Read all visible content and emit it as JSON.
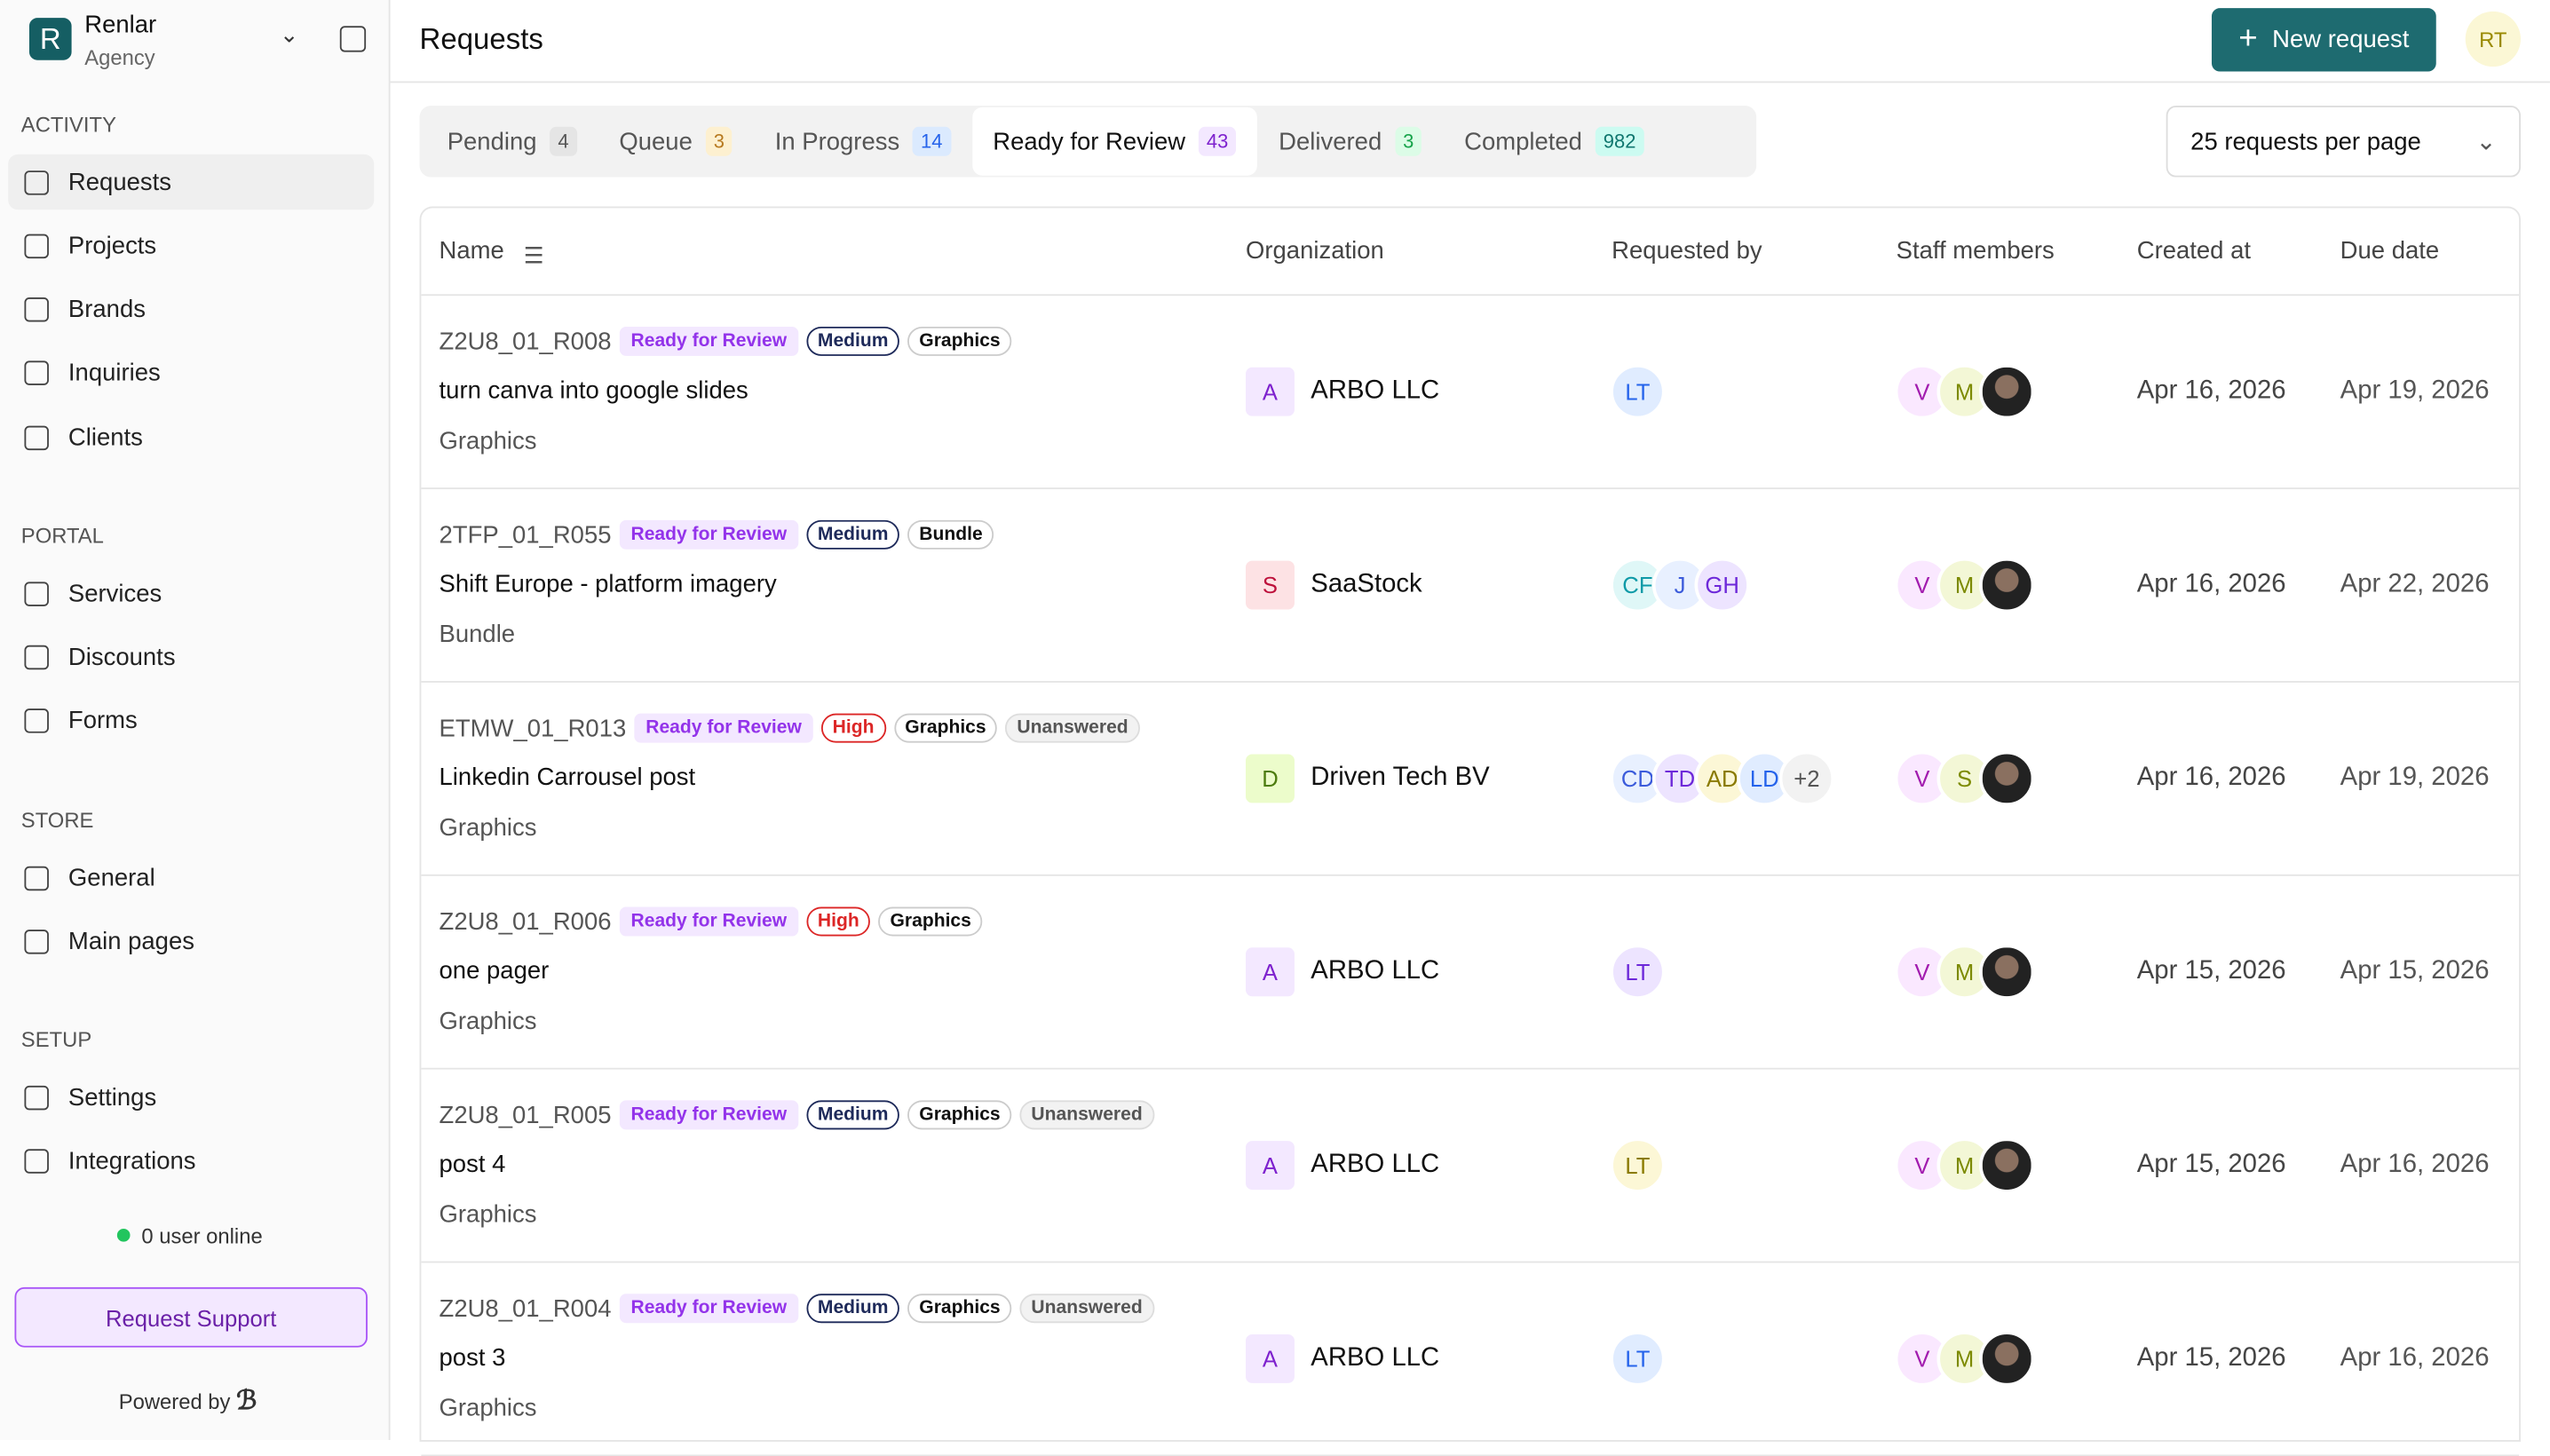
{
  "sidebar": {
    "brand": {
      "initial": "R",
      "name": "Renlar",
      "subtitle": "Agency"
    },
    "sections": [
      {
        "title": "ACTIVITY",
        "items": [
          "Requests",
          "Projects",
          "Brands",
          "Inquiries",
          "Clients"
        ]
      },
      {
        "title": "PORTAL",
        "items": [
          "Services",
          "Discounts",
          "Forms"
        ]
      },
      {
        "title": "STORE",
        "items": [
          "General",
          "Main pages"
        ]
      },
      {
        "title": "SETUP",
        "items": [
          "Settings",
          "Integrations"
        ]
      }
    ],
    "online": "0 user online",
    "support": "Request Support",
    "powered": "Powered by"
  },
  "header": {
    "title": "Requests",
    "button": "New request",
    "avatar": "RT"
  },
  "tabs": [
    {
      "label": "Pending",
      "count": "4"
    },
    {
      "label": "Queue",
      "count": "3"
    },
    {
      "label": "In Progress",
      "count": "14"
    },
    {
      "label": "Ready for Review",
      "count": "43"
    },
    {
      "label": "Delivered",
      "count": "3"
    },
    {
      "label": "Completed",
      "count": "982"
    }
  ],
  "per_page": "25 requests per page",
  "table": {
    "columns": [
      "Name",
      "Organization",
      "Requested by",
      "Staff members",
      "Created at",
      "Due date"
    ],
    "rows": [
      {
        "id": "Z2U8_01_R008",
        "status": "Ready for Review",
        "priority": {
          "text": "Medium",
          "color": "#1e2a5a"
        },
        "type": "Graphics",
        "title": "turn canva into google slides",
        "category": "Graphics",
        "org_initial": "A",
        "org": "ARBO LLC",
        "requested_by": [
          "LT"
        ],
        "staff": [
          "V",
          "M"
        ],
        "created": "Apr 16, 2026",
        "due": "Apr 19, 2026"
      },
      {
        "id": "2TFP_01_R055",
        "status": "Ready for Review",
        "priority": {
          "text": "Medium",
          "color": "#1e2a5a"
        },
        "type": "Bundle",
        "title": "Shift Europe - platform imagery",
        "category": "Bundle",
        "org_initial": "S",
        "org": "SaaStock",
        "requested_by": [
          "CF",
          "J",
          "GH"
        ],
        "staff": [
          "V",
          "M"
        ],
        "created": "Apr 16, 2026",
        "due": "Apr 22, 2026"
      },
      {
        "id": "ETMW_01_R013",
        "status": "Ready for Review",
        "priority": {
          "text": "High",
          "color": "#dc2626"
        },
        "type": "Graphics",
        "flag": "Unanswered",
        "title": "Linkedin Carrousel post",
        "category": "Graphics",
        "org_initial": "D",
        "org": "Driven Tech BV",
        "requested_by": [
          "CD",
          "TD",
          "AD",
          "LD"
        ],
        "requested_more": "+2",
        "staff": [
          "V",
          "S"
        ],
        "created": "Apr 16, 2026",
        "due": "Apr 19, 2026"
      },
      {
        "id": "Z2U8_01_R006",
        "status": "Ready for Review",
        "priority": {
          "text": "High",
          "color": "#dc2626"
        },
        "type": "Graphics",
        "title": "one pager",
        "category": "Graphics",
        "org_initial": "A",
        "org": "ARBO LLC",
        "requested_by": [
          "LT"
        ],
        "staff": [
          "V",
          "M"
        ],
        "created": "Apr 15, 2026",
        "due": "Apr 15, 2026"
      },
      {
        "id": "Z2U8_01_R005",
        "status": "Ready for Review",
        "priority": {
          "text": "Medium",
          "color": "#1e2a5a"
        },
        "type": "Graphics",
        "flag": "Unanswered",
        "title": "post 4",
        "category": "Graphics",
        "org_initial": "A",
        "org": "ARBO LLC",
        "requested_by": [
          "LT"
        ],
        "staff": [
          "V",
          "M"
        ],
        "created": "Apr 15, 2026",
        "due": "Apr 16, 2026"
      },
      {
        "id": "Z2U8_01_R004",
        "status": "Ready for Review",
        "priority": {
          "text": "Medium",
          "color": "#1e2a5a"
        },
        "type": "Graphics",
        "flag": "Unanswered",
        "title": "post 3",
        "category": "Graphics",
        "org_initial": "A",
        "org": "ARBO LLC",
        "requested_by": [
          "LT"
        ],
        "staff": [
          "V",
          "M"
        ],
        "created": "Apr 15, 2026",
        "due": "Apr 16, 2026"
      }
    ]
  }
}
